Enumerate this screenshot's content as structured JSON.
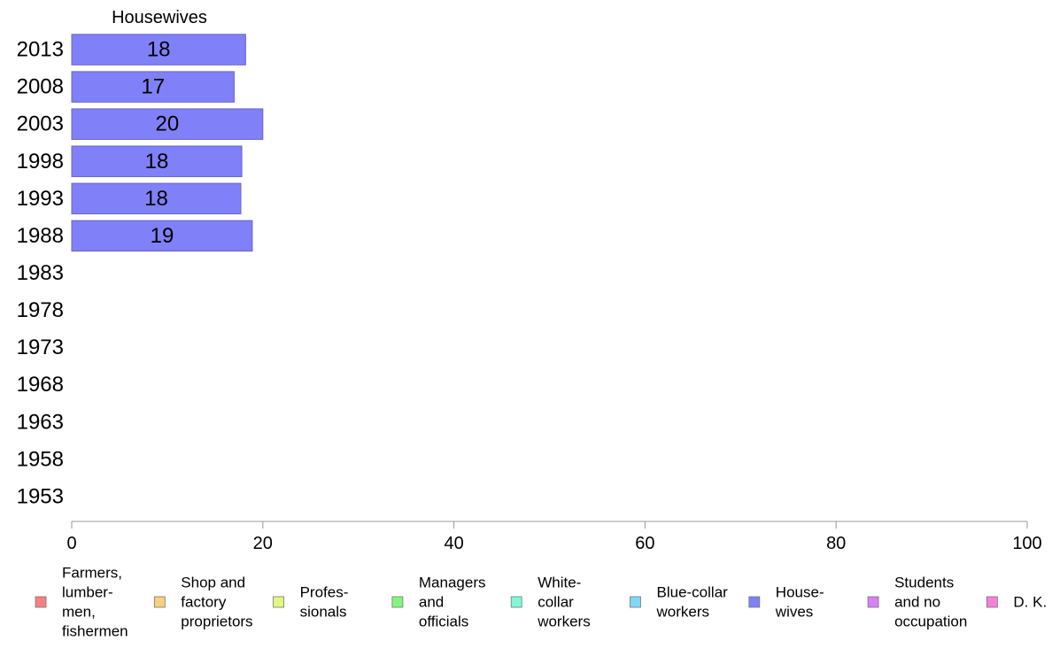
{
  "chart_data": {
    "type": "bar",
    "orientation": "horizontal",
    "title": "Housewives",
    "categories": [
      "2013",
      "2008",
      "2003",
      "1998",
      "1993",
      "1988",
      "1983",
      "1978",
      "1973",
      "1968",
      "1963",
      "1958",
      "1953"
    ],
    "series": [
      {
        "name": "Housewives",
        "color": "#8080f8",
        "values": [
          18.2,
          17.0,
          20.0,
          17.8,
          17.7,
          18.9,
          null,
          null,
          null,
          null,
          null,
          null,
          null
        ],
        "labels": [
          "18",
          "17",
          "20",
          "18",
          "18",
          "19",
          "",
          "",
          "",
          "",
          "",
          "",
          ""
        ]
      }
    ],
    "xlim": [
      0,
      100
    ],
    "xticks": [
      0,
      20,
      40,
      60,
      80,
      100
    ],
    "xlabel": "",
    "ylabel": "",
    "grid": false,
    "legend_position": "bottom",
    "legend": [
      {
        "lines": [
          "Farmers,",
          "lumber-",
          "men,",
          "fishermen"
        ],
        "color": "#f88080"
      },
      {
        "lines": [
          "Shop and",
          "factory",
          "proprietors"
        ],
        "color": "#f8d080"
      },
      {
        "lines": [
          "Profes-",
          "sionals"
        ],
        "color": "#e0f880"
      },
      {
        "lines": [
          "Managers",
          "and",
          "officials"
        ],
        "color": "#80f880"
      },
      {
        "lines": [
          "White-",
          "collar",
          "workers"
        ],
        "color": "#80f8d8"
      },
      {
        "lines": [
          "Blue-collar",
          "workers"
        ],
        "color": "#80d8f8"
      },
      {
        "lines": [
          "House-",
          "wives"
        ],
        "color": "#8080f8"
      },
      {
        "lines": [
          "Students",
          "and no",
          "occupation"
        ],
        "color": "#d880f8"
      },
      {
        "lines": [
          "D. K."
        ],
        "color": "#f880d8"
      }
    ]
  }
}
